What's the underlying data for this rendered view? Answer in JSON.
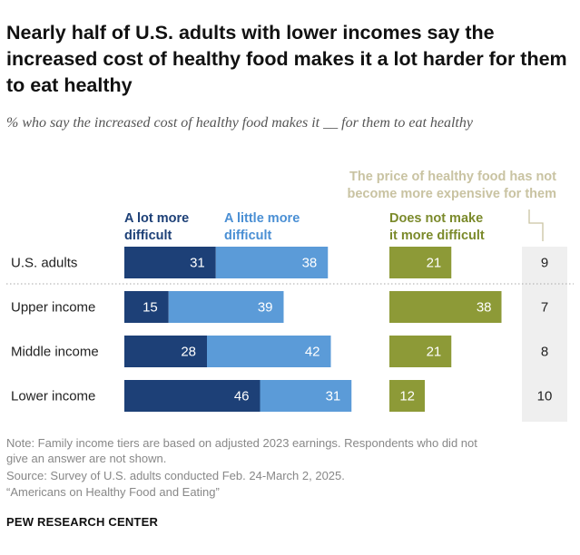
{
  "title": "Nearly half of U.S. adults with lower incomes say the increased cost of healthy food makes it a lot harder for them to eat healthy",
  "subtitle": "% who say the increased cost of healthy food makes it __ for them to eat healthy",
  "headers": {
    "lot": [
      "A lot more",
      "difficult"
    ],
    "little": [
      "A little more",
      "difficult"
    ],
    "notmake": [
      "Does not make",
      "it more difficult"
    ],
    "notexp": [
      "The price of healthy food has not",
      "become more expensive for them"
    ]
  },
  "notes": {
    "line1": "Note: Family income tiers are based on adjusted 2023 earnings. Respondents who did not",
    "line2": "give an answer are not shown.",
    "source": "Source: Survey of U.S. adults conducted Feb. 24-March 2, 2025.",
    "report": "“Americans on Healthy Food and Eating”"
  },
  "brand": "PEW RESEARCH CENTER",
  "colors": {
    "lot": "#1d4077",
    "little": "#5b9bd8",
    "notmake": "#8d9a37",
    "lot_text": "#1d4077",
    "little_text": "#4a8fd4",
    "notmake_text": "#7b8a2b",
    "notexp_text": "#c9c3a2",
    "column_bg": "#efefef"
  },
  "chart_data": {
    "type": "bar",
    "orientation": "horizontal",
    "stacked": true,
    "categories": [
      "U.S. adults",
      "Upper income",
      "Middle income",
      "Lower income"
    ],
    "series": [
      {
        "name": "A lot more difficult",
        "values": [
          31,
          15,
          28,
          46
        ]
      },
      {
        "name": "A little more difficult",
        "values": [
          38,
          39,
          42,
          31
        ]
      },
      {
        "name": "Does not make it more difficult",
        "values": [
          21,
          38,
          21,
          12
        ]
      },
      {
        "name": "The price of healthy food has not become more expensive for them",
        "values": [
          9,
          7,
          8,
          10
        ]
      }
    ]
  }
}
